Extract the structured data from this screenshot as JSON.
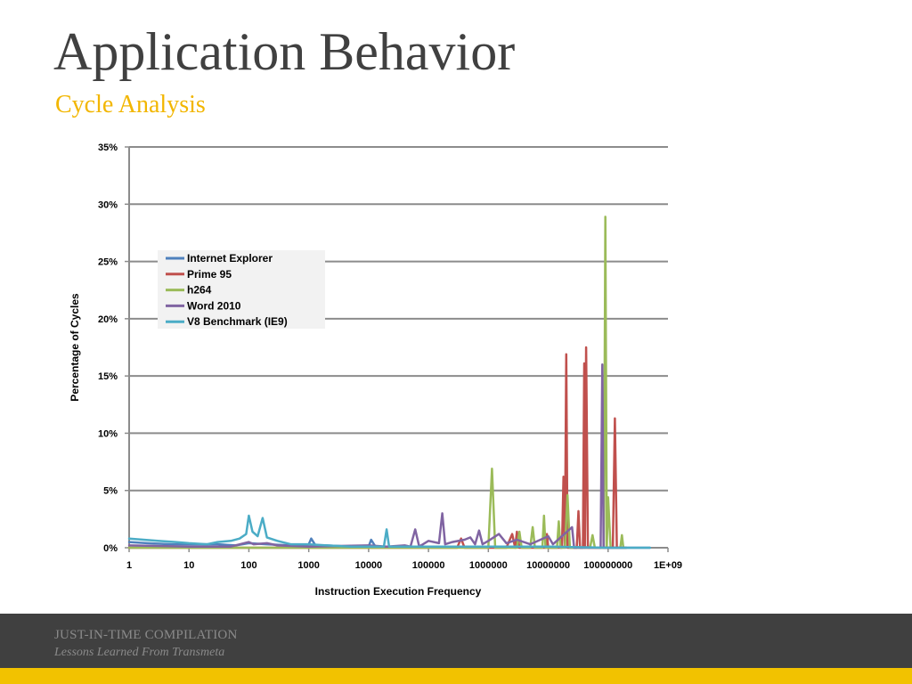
{
  "slide": {
    "title": "Application Behavior",
    "subtitle": "Cycle Analysis"
  },
  "footer": {
    "line1": "JUST-IN-TIME COMPILATION",
    "line2": "Lessons Learned From Transmeta"
  },
  "colors": {
    "title": "#404040",
    "subtitle": "#f2b600",
    "footer_band": "#404040",
    "footer_stripe": "#f2c200"
  },
  "chart_data": {
    "type": "line",
    "xscale": "log",
    "xlim": [
      1,
      1000000000
    ],
    "ylim": [
      0,
      35
    ],
    "xlabel": "Instruction Execution Frequency",
    "ylabel": "Percentage of Cycles",
    "x_ticks": [
      {
        "value": 1,
        "label": "1"
      },
      {
        "value": 10,
        "label": "10"
      },
      {
        "value": 100,
        "label": "100"
      },
      {
        "value": 1000,
        "label": "1000"
      },
      {
        "value": 10000,
        "label": "10000"
      },
      {
        "value": 100000,
        "label": "100000"
      },
      {
        "value": 1000000,
        "label": "1000000"
      },
      {
        "value": 10000000,
        "label": "10000000"
      },
      {
        "value": 100000000,
        "label": "100000000"
      },
      {
        "value": 1000000000,
        "label": "1E+09"
      }
    ],
    "y_ticks": [
      {
        "value": 0,
        "label": "0%"
      },
      {
        "value": 5,
        "label": "5%"
      },
      {
        "value": 10,
        "label": "10%"
      },
      {
        "value": 15,
        "label": "15%"
      },
      {
        "value": 20,
        "label": "20%"
      },
      {
        "value": 25,
        "label": "25%"
      },
      {
        "value": 30,
        "label": "30%"
      },
      {
        "value": 35,
        "label": "35%"
      }
    ],
    "grid": "horizontal",
    "legend_position": "upper-left",
    "series": [
      {
        "name": "Internet Explorer",
        "color": "#4f81bd",
        "points": [
          [
            1,
            0.5
          ],
          [
            2,
            0.4
          ],
          [
            5,
            0.3
          ],
          [
            10,
            0.3
          ],
          [
            30,
            0.3
          ],
          [
            60,
            0.2
          ],
          [
            100,
            0.4
          ],
          [
            200,
            0.3
          ],
          [
            500,
            0.2
          ],
          [
            1000,
            0.3
          ],
          [
            1100,
            0.8
          ],
          [
            1300,
            0.2
          ],
          [
            2000,
            0.2
          ],
          [
            5000,
            0.1
          ],
          [
            10000,
            0.1
          ],
          [
            11000,
            0.7
          ],
          [
            13000,
            0.1
          ],
          [
            20000,
            0.1
          ],
          [
            100000,
            0.1
          ],
          [
            1000000,
            0.1
          ],
          [
            10000000,
            0.1
          ],
          [
            100000000,
            0
          ],
          [
            500000000,
            0
          ]
        ]
      },
      {
        "name": "Prime 95",
        "color": "#c0504d",
        "points": [
          [
            1,
            0
          ],
          [
            1000,
            0
          ],
          [
            100000,
            0
          ],
          [
            300000,
            0
          ],
          [
            350000,
            0.8
          ],
          [
            400000,
            0
          ],
          [
            2000000,
            0
          ],
          [
            2500000,
            1.2
          ],
          [
            2800000,
            0
          ],
          [
            3000000,
            1.4
          ],
          [
            3300000,
            0
          ],
          [
            9000000,
            0
          ],
          [
            9500000,
            1.2
          ],
          [
            10000000,
            0
          ],
          [
            17000000,
            0
          ],
          [
            18000000,
            6.2
          ],
          [
            19000000,
            0
          ],
          [
            20000000,
            16.9
          ],
          [
            21000000,
            0
          ],
          [
            30000000,
            0
          ],
          [
            32000000,
            3.2
          ],
          [
            34000000,
            0
          ],
          [
            38000000,
            0
          ],
          [
            40000000,
            16.1
          ],
          [
            41000000,
            0
          ],
          [
            43000000,
            17.5
          ],
          [
            46000000,
            0
          ],
          [
            120000000,
            0
          ],
          [
            130000000,
            11.3
          ],
          [
            140000000,
            0
          ],
          [
            200000000,
            0
          ]
        ]
      },
      {
        "name": "h264",
        "color": "#9bbb59",
        "points": [
          [
            1,
            0
          ],
          [
            1000,
            0
          ],
          [
            100000,
            0
          ],
          [
            1000000,
            0
          ],
          [
            1150000,
            6.9
          ],
          [
            1300000,
            0
          ],
          [
            3000000,
            0
          ],
          [
            3300000,
            1.4
          ],
          [
            3600000,
            0
          ],
          [
            5000000,
            0
          ],
          [
            5500000,
            1.8
          ],
          [
            6000000,
            0
          ],
          [
            8000000,
            0
          ],
          [
            8500000,
            2.8
          ],
          [
            9000000,
            0
          ],
          [
            14000000,
            0
          ],
          [
            15000000,
            2.3
          ],
          [
            16000000,
            0
          ],
          [
            19000000,
            0
          ],
          [
            21000000,
            4.6
          ],
          [
            23000000,
            0
          ],
          [
            50000000,
            0
          ],
          [
            55000000,
            1.1
          ],
          [
            60000000,
            0
          ],
          [
            85000000,
            0
          ],
          [
            90000000,
            28.9
          ],
          [
            95000000,
            0
          ],
          [
            100000000,
            4.4
          ],
          [
            110000000,
            0
          ],
          [
            160000000,
            0
          ],
          [
            170000000,
            1.1
          ],
          [
            180000000,
            0
          ],
          [
            200000000,
            0
          ]
        ]
      },
      {
        "name": "Word 2010",
        "color": "#8064a2",
        "points": [
          [
            1,
            0.2
          ],
          [
            10,
            0.1
          ],
          [
            50,
            0.1
          ],
          [
            100,
            0.5
          ],
          [
            120,
            0.3
          ],
          [
            200,
            0.4
          ],
          [
            300,
            0.2
          ],
          [
            1000,
            0.1
          ],
          [
            10000,
            0.2
          ],
          [
            20000,
            0.1
          ],
          [
            40000,
            0.2
          ],
          [
            50000,
            0.1
          ],
          [
            60000,
            1.6
          ],
          [
            70000,
            0.1
          ],
          [
            100000,
            0.6
          ],
          [
            150000,
            0.4
          ],
          [
            170000,
            3.0
          ],
          [
            190000,
            0.3
          ],
          [
            250000,
            0.5
          ],
          [
            400000,
            0.7
          ],
          [
            500000,
            0.9
          ],
          [
            600000,
            0.3
          ],
          [
            700000,
            1.5
          ],
          [
            800000,
            0.3
          ],
          [
            1000000,
            0.6
          ],
          [
            1500000,
            1.2
          ],
          [
            2000000,
            0.4
          ],
          [
            3000000,
            0.7
          ],
          [
            5000000,
            0.3
          ],
          [
            10000000,
            1.0
          ],
          [
            12000000,
            0.3
          ],
          [
            25000000,
            1.8
          ],
          [
            27000000,
            0
          ],
          [
            75000000,
            0
          ],
          [
            80000000,
            16.0
          ],
          [
            84000000,
            0
          ],
          [
            200000000,
            0
          ]
        ]
      },
      {
        "name": "V8 Benchmark (IE9)",
        "color": "#4bacc6",
        "points": [
          [
            1,
            0.8
          ],
          [
            3,
            0.6
          ],
          [
            6,
            0.5
          ],
          [
            10,
            0.4
          ],
          [
            20,
            0.3
          ],
          [
            30,
            0.5
          ],
          [
            50,
            0.6
          ],
          [
            70,
            0.8
          ],
          [
            90,
            1.2
          ],
          [
            100,
            2.8
          ],
          [
            115,
            1.4
          ],
          [
            140,
            1.0
          ],
          [
            170,
            2.6
          ],
          [
            200,
            0.9
          ],
          [
            300,
            0.6
          ],
          [
            500,
            0.3
          ],
          [
            1000,
            0.3
          ],
          [
            2000,
            0.2
          ],
          [
            5000,
            0.1
          ],
          [
            10000,
            0.1
          ],
          [
            18000,
            0.1
          ],
          [
            20000,
            1.6
          ],
          [
            22000,
            0.1
          ],
          [
            100000,
            0.1
          ],
          [
            1000000,
            0.1
          ],
          [
            10000000,
            0.1
          ],
          [
            100000000,
            0
          ],
          [
            500000000,
            0
          ]
        ]
      }
    ]
  }
}
